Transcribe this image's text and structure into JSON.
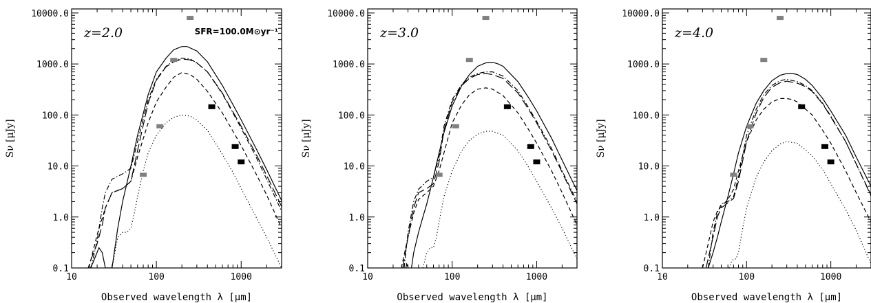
{
  "chart_data": [
    {
      "type": "line",
      "annotation": "z=2.0",
      "annotation_extra": "SFR=100.0M⊙yr⁻¹",
      "xlabel": "Observed wavelength λ [μm]",
      "ylabel": "Sν [μJy]",
      "xscale": "log",
      "yscale": "log",
      "xlim": [
        10,
        3000
      ],
      "ylim": [
        0.1,
        12000
      ],
      "xticks": [
        {
          "v": 10,
          "label": "10"
        },
        {
          "v": 100,
          "label": "100"
        },
        {
          "v": 1000,
          "label": "1000"
        }
      ],
      "yticks": [
        {
          "v": 0.1,
          "label": "0.1"
        },
        {
          "v": 1,
          "label": "1.0"
        },
        {
          "v": 10,
          "label": "10.0"
        },
        {
          "v": 100,
          "label": "100.0"
        },
        {
          "v": 1000,
          "label": "1000.0"
        },
        {
          "v": 10000,
          "label": "10000.0"
        }
      ],
      "points_gray": [
        {
          "x": 70,
          "y": 6.7
        },
        {
          "x": 110,
          "y": 60
        },
        {
          "x": 160,
          "y": 1200
        },
        {
          "x": 250,
          "y": 8000
        }
      ],
      "points_black": [
        {
          "x": 450,
          "y": 145
        },
        {
          "x": 850,
          "y": 24
        },
        {
          "x": 1000,
          "y": 12
        }
      ],
      "series": [
        {
          "style": "solid",
          "x": [
            15,
            18,
            21,
            23,
            25,
            27,
            30,
            35,
            40,
            50,
            60,
            80,
            100,
            130,
            160,
            200,
            230,
            300,
            400,
            600,
            800,
            1000,
            1500,
            2000,
            3000
          ],
          "y": [
            0.07,
            0.13,
            0.25,
            0.2,
            0.1,
            0.1,
            0.1,
            0.6,
            2,
            10,
            40,
            250,
            700,
            1300,
            1900,
            2200,
            2200,
            1800,
            1100,
            380,
            160,
            80,
            22,
            8.5,
            2.1
          ]
        },
        {
          "style": "dashed",
          "x": [
            16,
            20,
            25,
            30,
            40,
            50,
            60,
            80,
            100,
            130,
            160,
            200,
            250,
            300,
            400,
            600,
            800,
            1000,
            1500,
            2000,
            3000
          ],
          "y": [
            0.1,
            0.45,
            1.5,
            3,
            3.6,
            5,
            15,
            70,
            180,
            350,
            550,
            680,
            620,
            500,
            290,
            110,
            48,
            25,
            7,
            2.7,
            0.6
          ]
        },
        {
          "style": "dotted",
          "x": [
            30,
            35,
            40,
            45,
            50,
            55,
            60,
            70,
            80,
            100,
            130,
            160,
            200,
            250,
            300,
            400,
            600,
            800,
            1000,
            1500,
            2000,
            3000
          ],
          "y": [
            0.1,
            0.4,
            0.5,
            0.5,
            0.6,
            1.2,
            2.5,
            8,
            18,
            40,
            70,
            90,
            100,
            95,
            80,
            50,
            17,
            7.5,
            3.6,
            1,
            0.4,
            0.1
          ]
        },
        {
          "style": "dashdot",
          "x": [
            17,
            20,
            23,
            25,
            30,
            40,
            50,
            60,
            80,
            100,
            130,
            160,
            200,
            250,
            300,
            400,
            600,
            800,
            1000,
            1500,
            2000,
            3000
          ],
          "y": [
            0.1,
            0.35,
            1.5,
            3,
            5.5,
            7,
            9,
            30,
            200,
            500,
            900,
            1150,
            1300,
            1250,
            1050,
            700,
            260,
            110,
            55,
            15,
            5.5,
            1.3
          ]
        },
        {
          "style": "longdash",
          "x": [
            15,
            17,
            20,
            23,
            25,
            30,
            40,
            50,
            60,
            80,
            100,
            130,
            160,
            200,
            250,
            300,
            400,
            600,
            800,
            1000,
            1500,
            2000,
            3000
          ],
          "y": [
            0.08,
            0.15,
            0.3,
            0.7,
            1.5,
            3,
            3.6,
            5,
            20,
            170,
            480,
            880,
            1100,
            1250,
            1200,
            1050,
            700,
            270,
            115,
            60,
            17,
            6.5,
            1.6
          ]
        }
      ]
    },
    {
      "type": "line",
      "annotation": "z=3.0",
      "xlabel": "Observed wavelength λ [μm]",
      "ylabel": "Sν [μJy]",
      "xscale": "log",
      "yscale": "log",
      "xlim": [
        10,
        3000
      ],
      "ylim": [
        0.1,
        12000
      ],
      "xticks": [
        {
          "v": 10,
          "label": "10"
        },
        {
          "v": 100,
          "label": "100"
        },
        {
          "v": 1000,
          "label": "1000"
        }
      ],
      "yticks": [
        {
          "v": 0.1,
          "label": "0.1"
        },
        {
          "v": 1,
          "label": "1.0"
        },
        {
          "v": 10,
          "label": "10.0"
        },
        {
          "v": 100,
          "label": "100.0"
        },
        {
          "v": 1000,
          "label": "1000.0"
        },
        {
          "v": 10000,
          "label": "10000.0"
        }
      ],
      "points_gray": [
        {
          "x": 70,
          "y": 6.7
        },
        {
          "x": 110,
          "y": 60
        },
        {
          "x": 160,
          "y": 1200
        },
        {
          "x": 250,
          "y": 8000
        }
      ],
      "points_black": [
        {
          "x": 450,
          "y": 145
        },
        {
          "x": 850,
          "y": 24
        },
        {
          "x": 1000,
          "y": 12
        }
      ],
      "series": [
        {
          "style": "solid",
          "x": [
            27,
            29,
            31,
            33,
            35,
            40,
            45,
            50,
            60,
            70,
            80,
            100,
            130,
            160,
            200,
            250,
            300,
            350,
            400,
            600,
            800,
            1000,
            1500,
            2000,
            3000
          ],
          "y": [
            0.07,
            0.12,
            0.09,
            0.1,
            0.2,
            0.5,
            1,
            1.8,
            6,
            18,
            45,
            150,
            380,
            620,
            900,
            1050,
            1080,
            1000,
            900,
            450,
            220,
            120,
            35,
            13,
            3.3
          ]
        },
        {
          "style": "dashed",
          "x": [
            25,
            30,
            35,
            40,
            45,
            50,
            60,
            70,
            80,
            100,
            130,
            160,
            200,
            250,
            300,
            400,
            600,
            800,
            1000,
            1500,
            2000,
            3000
          ],
          "y": [
            0.1,
            0.4,
            1.2,
            2.2,
            2.6,
            3,
            4,
            8,
            18,
            70,
            160,
            250,
            320,
            340,
            320,
            240,
            110,
            52,
            28,
            8,
            3,
            0.7
          ]
        },
        {
          "style": "dotted",
          "x": [
            45,
            50,
            55,
            60,
            65,
            70,
            80,
            100,
            130,
            160,
            200,
            250,
            300,
            400,
            600,
            800,
            1000,
            1500,
            2000,
            3000
          ],
          "y": [
            0.1,
            0.2,
            0.25,
            0.25,
            0.4,
            0.8,
            2.5,
            8,
            20,
            32,
            42,
            48,
            48,
            40,
            20,
            9.5,
            5,
            1.5,
            0.6,
            0.15
          ]
        },
        {
          "style": "dashdot",
          "x": [
            27,
            30,
            35,
            40,
            50,
            60,
            70,
            80,
            100,
            130,
            160,
            200,
            250,
            300,
            400,
            600,
            800,
            1000,
            1500,
            2000,
            3000
          ],
          "y": [
            0.1,
            0.5,
            2,
            3.5,
            5,
            6,
            15,
            60,
            200,
            400,
            550,
            650,
            700,
            700,
            580,
            300,
            140,
            75,
            22,
            8,
            2
          ]
        },
        {
          "style": "longdash",
          "x": [
            26,
            30,
            35,
            40,
            50,
            60,
            70,
            80,
            100,
            130,
            160,
            200,
            250,
            300,
            400,
            600,
            800,
            1000,
            1500,
            2000,
            3000
          ],
          "y": [
            0.1,
            0.4,
            1.5,
            3,
            3.6,
            4.5,
            12,
            50,
            180,
            380,
            520,
            620,
            650,
            620,
            520,
            270,
            130,
            70,
            20,
            7.5,
            1.8
          ]
        }
      ]
    },
    {
      "type": "line",
      "annotation": "z=4.0",
      "xlabel": "Observed wavelength λ [μm]",
      "ylabel": "Sν [μJy]",
      "xscale": "log",
      "yscale": "log",
      "xlim": [
        10,
        3000
      ],
      "ylim": [
        0.1,
        12000
      ],
      "xticks": [
        {
          "v": 10,
          "label": "10"
        },
        {
          "v": 100,
          "label": "100"
        },
        {
          "v": 1000,
          "label": "1000"
        }
      ],
      "yticks": [
        {
          "v": 0.1,
          "label": "0.1"
        },
        {
          "v": 1,
          "label": "1.0"
        },
        {
          "v": 10,
          "label": "10.0"
        },
        {
          "v": 100,
          "label": "100.0"
        },
        {
          "v": 1000,
          "label": "1000.0"
        },
        {
          "v": 10000,
          "label": "10000.0"
        }
      ],
      "points_gray": [
        {
          "x": 70,
          "y": 6.7
        },
        {
          "x": 110,
          "y": 60
        },
        {
          "x": 160,
          "y": 1200
        },
        {
          "x": 250,
          "y": 8000
        }
      ],
      "points_black": [
        {
          "x": 450,
          "y": 145
        },
        {
          "x": 850,
          "y": 24
        },
        {
          "x": 1000,
          "y": 12
        }
      ],
      "series": [
        {
          "style": "solid",
          "x": [
            35,
            40,
            45,
            50,
            60,
            70,
            80,
            100,
            130,
            160,
            200,
            250,
            300,
            350,
            400,
            500,
            600,
            800,
            1000,
            1500,
            2000,
            3000
          ],
          "y": [
            0.1,
            0.2,
            0.4,
            0.8,
            2.5,
            7,
            18,
            60,
            170,
            300,
            470,
            600,
            650,
            650,
            620,
            500,
            380,
            210,
            120,
            40,
            15,
            4
          ]
        },
        {
          "style": "dashed",
          "x": [
            30,
            35,
            40,
            45,
            50,
            60,
            70,
            80,
            100,
            130,
            160,
            200,
            250,
            300,
            350,
            400,
            600,
            800,
            1000,
            1500,
            2000,
            3000
          ],
          "y": [
            0.1,
            0.3,
            0.8,
            1.3,
            1.6,
            2.2,
            3.5,
            8,
            30,
            80,
            130,
            180,
            210,
            210,
            200,
            180,
            100,
            50,
            28,
            8,
            3,
            0.8
          ]
        },
        {
          "style": "dotted",
          "x": [
            62,
            66,
            70,
            75,
            80,
            90,
            100,
            130,
            160,
            200,
            250,
            300,
            400,
            600,
            800,
            1000,
            1500,
            2000,
            3000
          ],
          "y": [
            0.1,
            0.13,
            0.15,
            0.15,
            0.2,
            0.6,
            1.5,
            6,
            12,
            20,
            27,
            30,
            28,
            16,
            8.5,
            4.5,
            1.4,
            0.55,
            0.12
          ]
        },
        {
          "style": "dashdot",
          "x": [
            35,
            40,
            45,
            50,
            60,
            70,
            80,
            100,
            130,
            160,
            200,
            250,
            300,
            400,
            500,
            600,
            800,
            1000,
            1500,
            2000,
            3000
          ],
          "y": [
            0.1,
            0.5,
            1.2,
            1.8,
            2,
            2.5,
            6,
            40,
            130,
            250,
            380,
            470,
            500,
            450,
            380,
            300,
            170,
            95,
            30,
            11,
            2.7
          ]
        },
        {
          "style": "longdash",
          "x": [
            33,
            40,
            45,
            50,
            60,
            70,
            80,
            100,
            130,
            160,
            200,
            250,
            300,
            400,
            500,
            600,
            800,
            1000,
            1500,
            2000,
            3000
          ],
          "y": [
            0.1,
            0.4,
            1,
            1.5,
            1.9,
            2.3,
            5,
            30,
            110,
            220,
            350,
            430,
            460,
            420,
            360,
            290,
            165,
            92,
            30,
            11,
            2.6
          ]
        }
      ]
    }
  ]
}
